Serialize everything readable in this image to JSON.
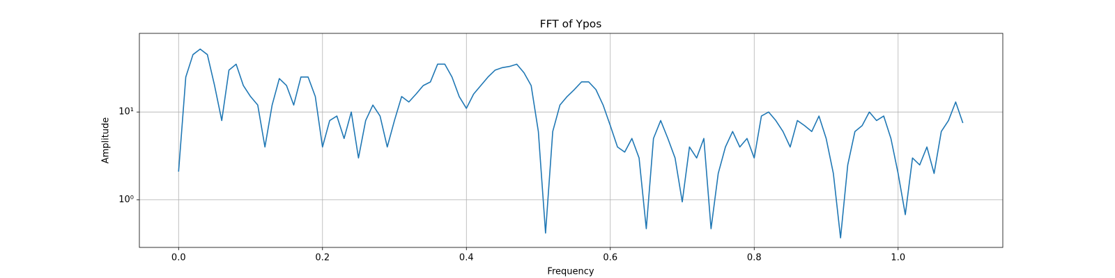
{
  "chart_data": {
    "type": "line",
    "title": "FFT of Ypos",
    "x_label": "Frequency",
    "y_label": "Amplitude",
    "x": [
      0.0,
      0.01,
      0.02,
      0.03,
      0.04,
      0.05,
      0.06,
      0.07,
      0.08,
      0.09,
      0.1,
      0.11,
      0.12,
      0.13,
      0.14,
      0.15,
      0.16,
      0.17,
      0.18,
      0.19,
      0.2,
      0.21,
      0.22,
      0.23,
      0.24,
      0.25,
      0.26,
      0.27,
      0.28,
      0.29,
      0.3,
      0.31,
      0.32,
      0.33,
      0.34,
      0.35,
      0.36,
      0.37,
      0.38,
      0.39,
      0.4,
      0.41,
      0.42,
      0.43,
      0.44,
      0.45,
      0.46,
      0.47,
      0.48,
      0.49,
      0.5,
      0.51,
      0.52,
      0.53,
      0.54,
      0.55,
      0.56,
      0.57,
      0.58,
      0.59,
      0.6,
      0.61,
      0.62,
      0.63,
      0.64,
      0.65,
      0.66,
      0.67,
      0.68,
      0.69,
      0.7,
      0.71,
      0.72,
      0.73,
      0.74,
      0.75,
      0.76,
      0.77,
      0.78,
      0.79,
      0.8,
      0.81,
      0.82,
      0.83,
      0.84,
      0.85,
      0.86,
      0.87,
      0.88,
      0.89,
      0.9,
      0.91,
      0.92,
      0.93,
      0.94,
      0.95,
      0.96,
      0.97,
      0.98,
      0.99,
      1.0,
      1.01,
      1.02,
      1.03,
      1.04,
      1.05,
      1.06,
      1.07,
      1.08,
      1.09
    ],
    "values": [
      2.1,
      25,
      45,
      52,
      45,
      20,
      8,
      30,
      35,
      20,
      15,
      12,
      4,
      12,
      24,
      20,
      12,
      25,
      25,
      15,
      4,
      8,
      9,
      5,
      10,
      3,
      8,
      12,
      9,
      4,
      8,
      15,
      13,
      16,
      20,
      22,
      35,
      35,
      25,
      15,
      11,
      16,
      20,
      25,
      30,
      32,
      33,
      35,
      28,
      20,
      6,
      0.42,
      6,
      12,
      15,
      18,
      22,
      22,
      18,
      12,
      7,
      4,
      3.5,
      5,
      3,
      0.47,
      5,
      8,
      5,
      3,
      0.95,
      4,
      3,
      5,
      0.47,
      2,
      4,
      6,
      4,
      5,
      3,
      9,
      10,
      8,
      6,
      4,
      8,
      7,
      6,
      9,
      5,
      2,
      0.37,
      2.5,
      6,
      7,
      10,
      8,
      9,
      5,
      2,
      0.68,
      3,
      2.5,
      4,
      2,
      6,
      8,
      13,
      7.5
    ],
    "color": "#1f77b4",
    "xlim": [
      -0.0545,
      1.1455
    ],
    "xticks": [
      {
        "value": 0,
        "label": "0.0"
      },
      0.2,
      0.4,
      0.6,
      0.8,
      {
        "value": 1,
        "label": "1.0"
      }
    ],
    "ylim": [
      0.288,
      78.5
    ],
    "y_scale": "log",
    "yticks": [
      {
        "value": 1,
        "label": "10⁰"
      },
      {
        "value": 10,
        "label": "10¹"
      }
    ],
    "grid": true
  }
}
